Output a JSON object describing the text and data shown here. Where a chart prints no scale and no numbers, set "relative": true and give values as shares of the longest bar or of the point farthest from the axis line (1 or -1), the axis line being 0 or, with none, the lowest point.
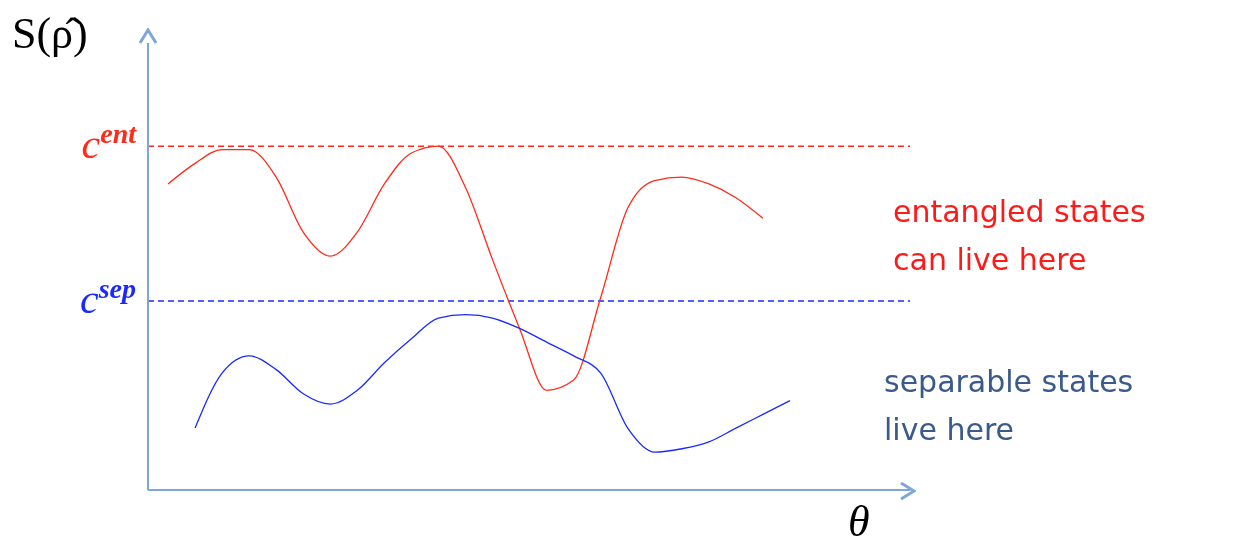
{
  "chart_data": {
    "type": "line",
    "relative": true,
    "ylabel": "S(ρ̂)",
    "xlabel": "θ",
    "categories": [
      null,
      null,
      null,
      null,
      null,
      null,
      null,
      null,
      null,
      null,
      null,
      null,
      null,
      null,
      null,
      null,
      null,
      null,
      null,
      null,
      null,
      null,
      null,
      null
    ],
    "series": [
      {
        "color": "#ff2a1a",
        "values": [
          0.89,
          0.95,
          0.99,
          0.99,
          0.91,
          0.75,
          0.68,
          0.75,
          0.89,
          0.98,
          1,
          0.88,
          0.67,
          0.47,
          0.29,
          0.32,
          0.56,
          0.82,
          0.9,
          0.91,
          0.89,
          0.85,
          0.79,
          null
        ]
      },
      {
        "color": "#1a2aff",
        "values": [
          null,
          0.18,
          0.34,
          0.39,
          0.35,
          0.28,
          0.25,
          0.29,
          0.37,
          0.44,
          0.5,
          0.51,
          0.5,
          0.47,
          0.43,
          0.39,
          0.34,
          0.18,
          0.11,
          0.12,
          0.14,
          0.18,
          0.22,
          0.26
        ]
      }
    ],
    "ref_lines": [
      {
        "axis": "y",
        "value": 1,
        "label": "c$^{ent}$",
        "color": "#ff2a1a",
        "line_style": "dashed"
      },
      {
        "axis": "y",
        "value": 0.55,
        "label": "c$^{sep}$",
        "color": "#1a2aff",
        "line_style": "dashed"
      }
    ],
    "annotations": [
      "entangled states\ncan live here",
      "separable states\nlive here"
    ],
    "legend": false,
    "grid": false,
    "marker": "none",
    "line_style": "solid"
  }
}
